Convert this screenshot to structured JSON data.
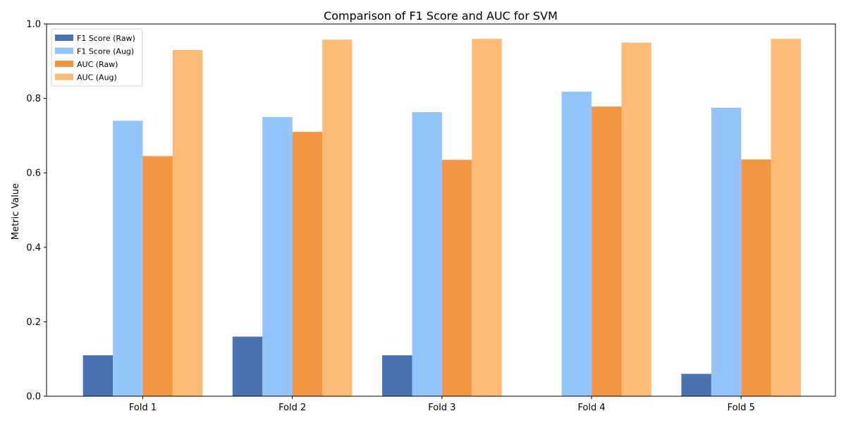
{
  "chart_data": {
    "type": "bar",
    "title": "Comparison of F1 Score and AUC for SVM",
    "xlabel": "",
    "ylabel": "Metric Value",
    "categories": [
      "Fold 1",
      "Fold 2",
      "Fold 3",
      "Fold 4",
      "Fold 5"
    ],
    "ylim": [
      0,
      1.0
    ],
    "yticks": [
      "0.0",
      "0.2",
      "0.4",
      "0.6",
      "0.8",
      "1.0"
    ],
    "legend_position": "top-left",
    "grid": false,
    "series": [
      {
        "name": "F1 Score (Raw)",
        "color": "#4a72b0",
        "values": [
          0.11,
          0.16,
          0.11,
          0.0,
          0.06
        ]
      },
      {
        "name": "F1 Score (Aug)",
        "color": "#93c5fc",
        "values": [
          0.74,
          0.75,
          0.763,
          0.818,
          0.775
        ]
      },
      {
        "name": "AUC (Raw)",
        "color": "#f39644",
        "values": [
          0.645,
          0.71,
          0.635,
          0.778,
          0.636
        ]
      },
      {
        "name": "AUC (Aug)",
        "color": "#fdbb78",
        "values": [
          0.93,
          0.958,
          0.96,
          0.95,
          0.96
        ]
      }
    ]
  }
}
